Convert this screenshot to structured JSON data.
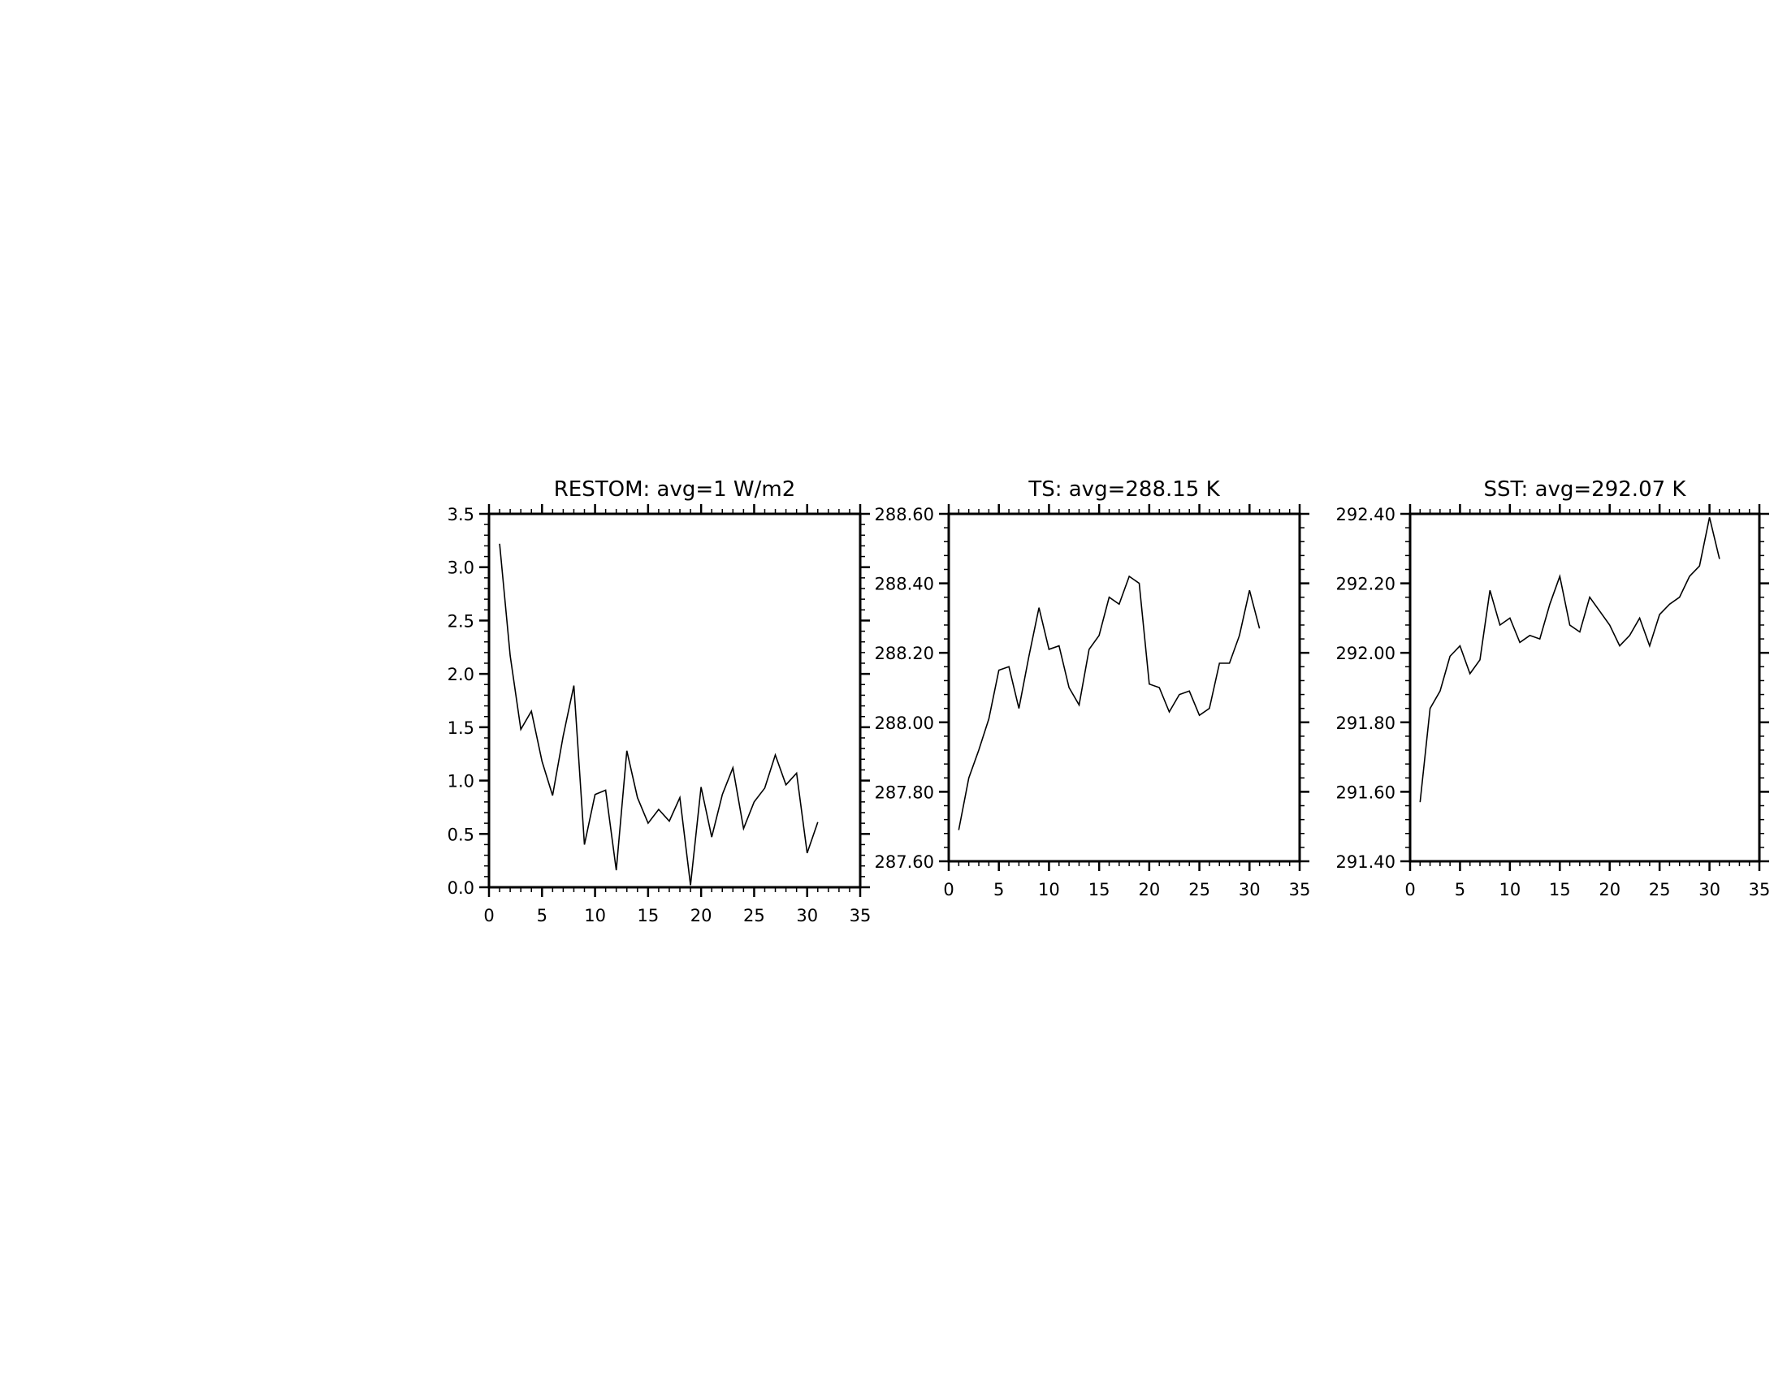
{
  "chart_data": [
    {
      "type": "line",
      "title": "RESTOM: avg=1 W/m2",
      "xlabel": "",
      "ylabel": "",
      "xlim": [
        0,
        35
      ],
      "ylim": [
        0,
        3.5
      ],
      "xticks": [
        "0",
        "5",
        "10",
        "15",
        "20",
        "25",
        "30",
        "35"
      ],
      "yticks": [
        "0.0",
        "0.5",
        "1.0",
        "1.5",
        "2.0",
        "2.5",
        "3.0",
        "3.5"
      ],
      "grid": false,
      "x": [
        1,
        2,
        3,
        4,
        5,
        6,
        7,
        8,
        9,
        10,
        11,
        12,
        13,
        14,
        15,
        16,
        17,
        18,
        19,
        20,
        21,
        22,
        23,
        24,
        25,
        26,
        27,
        28,
        29,
        30,
        31
      ],
      "values": [
        3.22,
        2.17,
        1.48,
        1.65,
        1.18,
        0.86,
        1.42,
        1.89,
        0.4,
        0.87,
        0.91,
        0.16,
        1.28,
        0.84,
        0.6,
        0.73,
        0.62,
        0.84,
        0.02,
        0.94,
        0.47,
        0.87,
        1.12,
        0.55,
        0.8,
        0.93,
        1.24,
        0.96,
        1.07,
        0.32,
        0.61
      ]
    },
    {
      "type": "line",
      "title": "TS: avg=288.15 K",
      "xlabel": "",
      "ylabel": "",
      "xlim": [
        0,
        35
      ],
      "ylim": [
        287.6,
        288.6
      ],
      "xticks": [
        "0",
        "5",
        "10",
        "15",
        "20",
        "25",
        "30",
        "35"
      ],
      "yticks": [
        "287.60",
        "287.80",
        "288.00",
        "288.20",
        "288.40",
        "288.60"
      ],
      "grid": false,
      "x": [
        1,
        2,
        3,
        4,
        5,
        6,
        7,
        8,
        9,
        10,
        11,
        12,
        13,
        14,
        15,
        16,
        17,
        18,
        19,
        20,
        21,
        22,
        23,
        24,
        25,
        26,
        27,
        28,
        29,
        30,
        31
      ],
      "values": [
        287.69,
        287.84,
        287.92,
        288.01,
        288.15,
        288.16,
        288.04,
        288.19,
        288.33,
        288.21,
        288.22,
        288.1,
        288.05,
        288.21,
        288.25,
        288.36,
        288.34,
        288.42,
        288.4,
        288.11,
        288.1,
        288.03,
        288.08,
        288.09,
        288.02,
        288.04,
        288.17,
        288.17,
        288.25,
        288.38,
        288.27
      ]
    },
    {
      "type": "line",
      "title": "SST: avg=292.07 K",
      "xlabel": "",
      "ylabel": "",
      "xlim": [
        0,
        35
      ],
      "ylim": [
        291.4,
        292.4
      ],
      "xticks": [
        "0",
        "5",
        "10",
        "15",
        "20",
        "25",
        "30",
        "35"
      ],
      "yticks": [
        "291.40",
        "291.60",
        "291.80",
        "292.00",
        "292.20",
        "292.40"
      ],
      "grid": false,
      "x": [
        1,
        2,
        3,
        4,
        5,
        6,
        7,
        8,
        9,
        10,
        11,
        12,
        13,
        14,
        15,
        16,
        17,
        18,
        19,
        20,
        21,
        22,
        23,
        24,
        25,
        26,
        27,
        28,
        29,
        30,
        31
      ],
      "values": [
        291.57,
        291.84,
        291.89,
        291.99,
        292.02,
        291.94,
        291.98,
        292.18,
        292.08,
        292.1,
        292.03,
        292.05,
        292.04,
        292.14,
        292.22,
        292.08,
        292.06,
        292.16,
        292.12,
        292.08,
        292.02,
        292.05,
        292.1,
        292.02,
        292.11,
        292.14,
        292.16,
        292.22,
        292.25,
        292.39,
        292.27
      ]
    }
  ]
}
